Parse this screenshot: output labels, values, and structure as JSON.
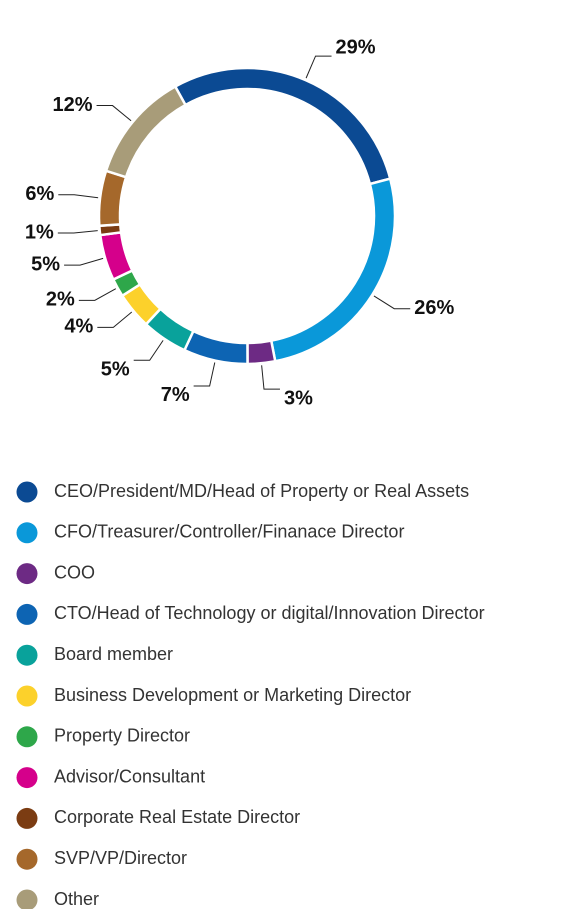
{
  "chart_data": {
    "type": "donut",
    "categories": [
      "CEO/President/MD/Head of Property or Real Assets",
      "CFO/Treasurer/Controller/Finanace Director",
      "COO",
      "CTO/Head of Technology or digital/Innovation Director",
      "Board member",
      "Business Development or Marketing Director",
      "Property Director",
      "Advisor/Consultant",
      "Corporate Real Estate Director",
      "SVP/VP/Director",
      "Other"
    ],
    "values": [
      29,
      26,
      3,
      7,
      5,
      4,
      2,
      5,
      1,
      6,
      12
    ],
    "value_labels": [
      "29%",
      "26%",
      "3%",
      "7%",
      "5%",
      "4%",
      "2%",
      "5%",
      "1%",
      "6%",
      "12%"
    ],
    "colors": [
      "#0b4a93",
      "#0a98d9",
      "#6d2a84",
      "#0d64b3",
      "#09a29b",
      "#fcd12b",
      "#2ea74a",
      "#d5008b",
      "#7b3c12",
      "#a5682b",
      "#a89c79"
    ]
  }
}
